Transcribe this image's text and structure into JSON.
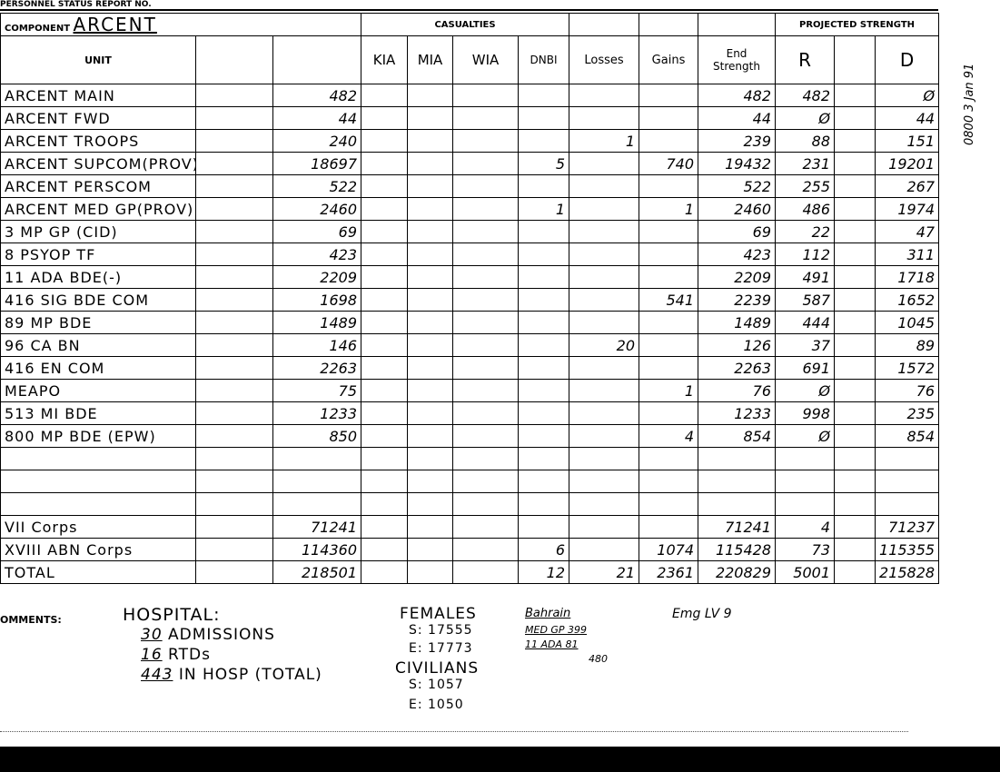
{
  "header": {
    "report_label": "PERSONNEL STATUS REPORT NO.",
    "component_label": "COMPONENT",
    "component": "ARCENT"
  },
  "table": {
    "group_headers": {
      "casualties": "CASUALTIES",
      "projected_strength": "PROJECTED STRENGTH"
    },
    "columns": {
      "unit": "UNIT",
      "kia": "KIA",
      "mia": "MIA",
      "wia": "WIA",
      "dnbi": "DNBI",
      "losses": "Losses",
      "gains": "Gains",
      "end": "End Strength",
      "r": "R",
      "d": "D"
    },
    "rows": [
      {
        "unit": "ARCENT MAIN",
        "start": 482,
        "end": 482,
        "r": 482,
        "d": "Ø"
      },
      {
        "unit": "ARCENT FWD",
        "start": 44,
        "end": 44,
        "r": "Ø",
        "d": 44
      },
      {
        "unit": "ARCENT TROOPS",
        "start": 240,
        "losses": 1,
        "end": 239,
        "r": 88,
        "d": 151
      },
      {
        "unit": "ARCENT SUPCOM(PROV)",
        "start": 18697,
        "dnbi": 5,
        "gains": 740,
        "end": 19432,
        "r": 231,
        "d": 19201
      },
      {
        "unit": "ARCENT PERSCOM",
        "start": 522,
        "end": 522,
        "r": 255,
        "d": 267
      },
      {
        "unit": "ARCENT MED GP(PROV)",
        "start": 2460,
        "dnbi": 1,
        "gains": 1,
        "end": 2460,
        "r": 486,
        "d": 1974
      },
      {
        "unit": "3 MP GP (CID)",
        "start": 69,
        "end": 69,
        "r": 22,
        "d": 47
      },
      {
        "unit": "8 PSYOP TF",
        "start": 423,
        "end": 423,
        "r": 112,
        "d": 311
      },
      {
        "unit": "11 ADA BDE(-)",
        "start": 2209,
        "end": 2209,
        "r": 491,
        "d": 1718
      },
      {
        "unit": "416 SIG BDE COM",
        "start": 1698,
        "gains": 541,
        "end": 2239,
        "r": 587,
        "d": 1652
      },
      {
        "unit": "89 MP BDE",
        "start": 1489,
        "end": 1489,
        "r": 444,
        "d": 1045
      },
      {
        "unit": "96 CA BN",
        "start": 146,
        "losses": 20,
        "end": 126,
        "r": 37,
        "d": 89
      },
      {
        "unit": "416 EN COM",
        "start": 2263,
        "end": 2263,
        "r": 691,
        "d": 1572
      },
      {
        "unit": "MEAPO",
        "start": 75,
        "gains": 1,
        "end": 76,
        "r": "Ø",
        "d": 76
      },
      {
        "unit": "513 MI BDE",
        "start": 1233,
        "end": 1233,
        "r": 998,
        "d": 235
      },
      {
        "unit": "800 MP BDE (EPW)",
        "start": 850,
        "gains": 4,
        "end": 854,
        "r": "Ø",
        "d": 854
      }
    ],
    "summary_rows": [
      {
        "unit": "VII Corps",
        "start": 71241,
        "end": 71241,
        "r": 4,
        "d": 71237
      },
      {
        "unit": "XVIII ABN Corps",
        "start": 114360,
        "dnbi": 6,
        "gains": 1074,
        "end": 115428,
        "r": 73,
        "d": 115355
      },
      {
        "unit": "TOTAL",
        "start": 218501,
        "dnbi": 12,
        "losses": 21,
        "gains": 2361,
        "end": 220829,
        "r": 5001,
        "d": 215828
      }
    ]
  },
  "comments": {
    "label": "OMMENTS:",
    "hospital": {
      "label": "HOSPITAL:",
      "items": [
        {
          "count": 30,
          "text": "ADMISSIONS"
        },
        {
          "count": 16,
          "text": "RTDs"
        },
        {
          "count": 443,
          "text": "IN HOSP (TOTAL)"
        }
      ]
    },
    "females": {
      "label": "FEMALES",
      "s": "S: 17555",
      "e": "E: 17773"
    },
    "civilians": {
      "label": "CIVILIANS",
      "s": "S: 1057",
      "e": "E: 1050"
    },
    "bahrain": {
      "label": "Bahrain",
      "lines": [
        "MED GP 399",
        "11 ADA 81",
        "480"
      ]
    },
    "emergency_leave": "Emg LV 9"
  },
  "side_note": "0800 3 Jan 91"
}
